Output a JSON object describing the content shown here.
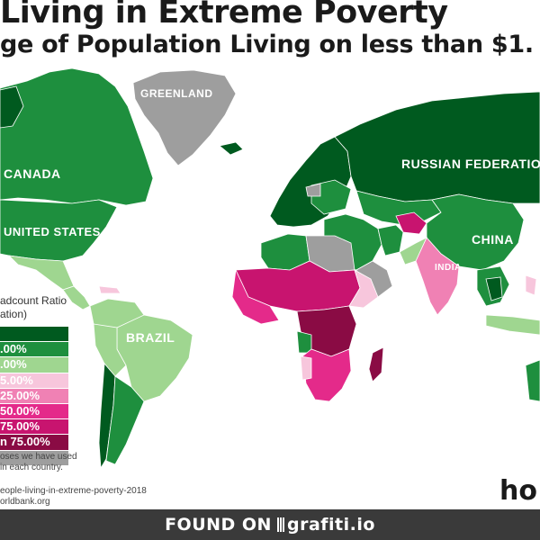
{
  "title": "Living in Extreme Poverty",
  "subtitle": "ge of Population Living on less than $1.",
  "legend": {
    "title_line1": "adcount Ratio",
    "title_line2": "ation)",
    "items": [
      {
        "label": "",
        "color": "#005a1f"
      },
      {
        "label": ".00%",
        "color": "#1e8f3e"
      },
      {
        "label": ".00%",
        "color": "#9fd690"
      },
      {
        "label": "5.00%",
        "color": "#f7c6dc"
      },
      {
        "label": "25.00%",
        "color": "#f081b4"
      },
      {
        "label": "50.00%",
        "color": "#e42a8a"
      },
      {
        "label": "75.00%",
        "color": "#c8146f"
      },
      {
        "label": "n 75.00%",
        "color": "#8a0b44"
      },
      {
        "label": "",
        "color": "#9e9e9e"
      }
    ]
  },
  "note": {
    "line1": "oses we have used",
    "line2": "in each country."
  },
  "source": {
    "line1": "eople-living-in-extreme-poverty-2018",
    "line2": "orldbank.org"
  },
  "brand": "ho",
  "footer": {
    "prefix": "FOUND ON",
    "suffix": "grafiti.io"
  },
  "labels": {
    "greenland": "GREENLAND",
    "canada": "CANADA",
    "united_states": "UNITED STATES",
    "brazil": "BRAZIL",
    "russia": "RUSSIAN FEDERATIO",
    "china": "CHINA",
    "india": "INDIA"
  },
  "map_colors": {
    "ocean": "#ffffff",
    "no_data": "#9e9e9e",
    "very_low": "#005a1f",
    "low": "#1e8f3e",
    "low_mid": "#9fd690",
    "mid": "#f7c6dc",
    "mid_high": "#f081b4",
    "high": "#e42a8a",
    "very_high": "#c8146f",
    "extreme": "#8a0b44"
  }
}
